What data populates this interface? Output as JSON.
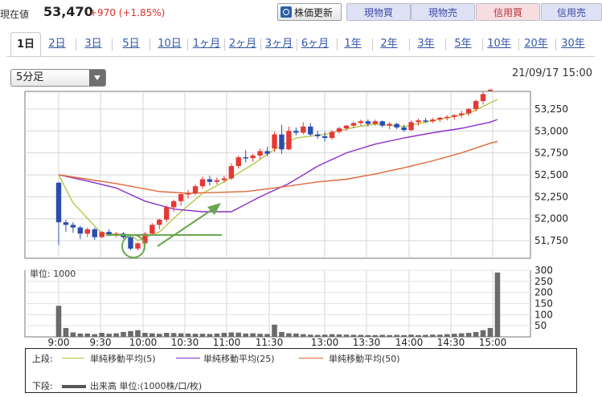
{
  "header": {
    "price_label": "現在値",
    "price_value": "53,470",
    "price_change": "+970 (+1.85%)",
    "buttons": {
      "refresh": "株価更新",
      "spot_buy": "現物買",
      "spot_sell": "現物売",
      "margin_buy": "信用買",
      "margin_sell": "信用売"
    }
  },
  "tabs": [
    {
      "label": "1日",
      "active": true
    },
    {
      "label": "2日"
    },
    {
      "label": "3日"
    },
    {
      "label": "5日"
    },
    {
      "label": "10日"
    },
    {
      "label": "1ヶ月"
    },
    {
      "label": "2ヶ月"
    },
    {
      "label": "3ヶ月"
    },
    {
      "label": "6ヶ月"
    },
    {
      "label": "1年"
    },
    {
      "label": "2年"
    },
    {
      "label": "3年"
    },
    {
      "label": "5年"
    },
    {
      "label": "10年"
    },
    {
      "label": "20年"
    },
    {
      "label": "30年"
    }
  ],
  "period_select": {
    "value": "5分足"
  },
  "datetime": "21/09/17 15:00",
  "colors": {
    "up": "#e53935",
    "down": "#2b4db0",
    "ma5": "#b4c84a",
    "ma25": "#8b2fc9",
    "ma50": "#e0673a",
    "volume": "#6b6b6b",
    "annotation": "#6aa84f"
  },
  "chart_data": [
    {
      "type": "candlestick",
      "name": "price",
      "x_ticks": [
        "9:00",
        "9:30",
        "10:00",
        "10:30",
        "11:00",
        "11:30",
        "13:00",
        "13:30",
        "14:00",
        "14:30",
        "15:00"
      ],
      "y_ticks": [
        51750,
        52000,
        52250,
        52500,
        52750,
        53000,
        53250
      ],
      "ylim": [
        51550,
        53450
      ],
      "candles": [
        {
          "t": "9:00",
          "o": 52410,
          "h": 52420,
          "l": 51700,
          "c": 51960
        },
        {
          "t": "9:05",
          "o": 51960,
          "h": 51990,
          "l": 51850,
          "c": 51930
        },
        {
          "t": "9:10",
          "o": 51930,
          "h": 51960,
          "l": 51840,
          "c": 51900
        },
        {
          "t": "9:15",
          "o": 51900,
          "h": 51920,
          "l": 51770,
          "c": 51830
        },
        {
          "t": "9:20",
          "o": 51830,
          "h": 51900,
          "l": 51790,
          "c": 51880
        },
        {
          "t": "9:25",
          "o": 51880,
          "h": 51900,
          "l": 51760,
          "c": 51790
        },
        {
          "t": "9:30",
          "o": 51790,
          "h": 51860,
          "l": 51780,
          "c": 51850
        },
        {
          "t": "9:35",
          "o": 51850,
          "h": 51880,
          "l": 51800,
          "c": 51820
        },
        {
          "t": "9:40",
          "o": 51820,
          "h": 51850,
          "l": 51790,
          "c": 51830
        },
        {
          "t": "9:45",
          "o": 51830,
          "h": 51850,
          "l": 51770,
          "c": 51790
        },
        {
          "t": "9:50",
          "o": 51790,
          "h": 51800,
          "l": 51640,
          "c": 51660
        },
        {
          "t": "9:55",
          "o": 51660,
          "h": 51730,
          "l": 51640,
          "c": 51720
        },
        {
          "t": "10:00",
          "o": 51720,
          "h": 51850,
          "l": 51700,
          "c": 51830
        },
        {
          "t": "10:05",
          "o": 51830,
          "h": 51950,
          "l": 51820,
          "c": 51930
        },
        {
          "t": "10:10",
          "o": 51930,
          "h": 52000,
          "l": 51880,
          "c": 51990
        },
        {
          "t": "10:15",
          "o": 51990,
          "h": 52150,
          "l": 51960,
          "c": 52130
        },
        {
          "t": "10:20",
          "o": 52130,
          "h": 52220,
          "l": 52080,
          "c": 52200
        },
        {
          "t": "10:25",
          "o": 52200,
          "h": 52300,
          "l": 52150,
          "c": 52280
        },
        {
          "t": "10:30",
          "o": 52280,
          "h": 52330,
          "l": 52230,
          "c": 52290
        },
        {
          "t": "10:35",
          "o": 52290,
          "h": 52390,
          "l": 52270,
          "c": 52370
        },
        {
          "t": "10:40",
          "o": 52370,
          "h": 52480,
          "l": 52340,
          "c": 52450
        },
        {
          "t": "10:45",
          "o": 52450,
          "h": 52490,
          "l": 52380,
          "c": 52420
        },
        {
          "t": "10:50",
          "o": 52420,
          "h": 52470,
          "l": 52390,
          "c": 52440
        },
        {
          "t": "10:55",
          "o": 52440,
          "h": 52490,
          "l": 52410,
          "c": 52460
        },
        {
          "t": "11:00",
          "o": 52460,
          "h": 52630,
          "l": 52440,
          "c": 52600
        },
        {
          "t": "11:05",
          "o": 52600,
          "h": 52720,
          "l": 52570,
          "c": 52700
        },
        {
          "t": "11:10",
          "o": 52700,
          "h": 52780,
          "l": 52640,
          "c": 52690
        },
        {
          "t": "11:15",
          "o": 52690,
          "h": 52740,
          "l": 52650,
          "c": 52720
        },
        {
          "t": "11:20",
          "o": 52720,
          "h": 52800,
          "l": 52680,
          "c": 52770
        },
        {
          "t": "11:25",
          "o": 52770,
          "h": 52820,
          "l": 52710,
          "c": 52740
        },
        {
          "t": "12:30",
          "o": 52800,
          "h": 52990,
          "l": 52760,
          "c": 52960
        },
        {
          "t": "12:35",
          "o": 52960,
          "h": 53070,
          "l": 52740,
          "c": 52790
        },
        {
          "t": "12:40",
          "o": 52790,
          "h": 53050,
          "l": 52780,
          "c": 53000
        },
        {
          "t": "12:45",
          "o": 53000,
          "h": 53040,
          "l": 52950,
          "c": 52980
        },
        {
          "t": "12:50",
          "o": 52980,
          "h": 53100,
          "l": 52960,
          "c": 53050
        },
        {
          "t": "12:55",
          "o": 53050,
          "h": 53090,
          "l": 52940,
          "c": 52960
        },
        {
          "t": "13:00",
          "o": 52960,
          "h": 53000,
          "l": 52910,
          "c": 52940
        },
        {
          "t": "13:05",
          "o": 52940,
          "h": 52990,
          "l": 52880,
          "c": 52920
        },
        {
          "t": "13:10",
          "o": 52920,
          "h": 53010,
          "l": 52900,
          "c": 52990
        },
        {
          "t": "13:15",
          "o": 52990,
          "h": 53050,
          "l": 52970,
          "c": 53030
        },
        {
          "t": "13:20",
          "o": 53030,
          "h": 53070,
          "l": 53000,
          "c": 53060
        },
        {
          "t": "13:25",
          "o": 53060,
          "h": 53110,
          "l": 53030,
          "c": 53090
        },
        {
          "t": "13:30",
          "o": 53090,
          "h": 53130,
          "l": 53060,
          "c": 53110
        },
        {
          "t": "13:35",
          "o": 53110,
          "h": 53130,
          "l": 53050,
          "c": 53080
        },
        {
          "t": "13:40",
          "o": 53080,
          "h": 53130,
          "l": 53060,
          "c": 53110
        },
        {
          "t": "13:45",
          "o": 53110,
          "h": 53120,
          "l": 53040,
          "c": 53060
        },
        {
          "t": "13:50",
          "o": 53060,
          "h": 53100,
          "l": 53020,
          "c": 53080
        },
        {
          "t": "13:55",
          "o": 53080,
          "h": 53090,
          "l": 53020,
          "c": 53040
        },
        {
          "t": "14:00",
          "o": 53040,
          "h": 53070,
          "l": 52990,
          "c": 53010
        },
        {
          "t": "14:05",
          "o": 53010,
          "h": 53120,
          "l": 53000,
          "c": 53100
        },
        {
          "t": "14:10",
          "o": 53100,
          "h": 53140,
          "l": 53060,
          "c": 53120
        },
        {
          "t": "14:15",
          "o": 53120,
          "h": 53150,
          "l": 53090,
          "c": 53110
        },
        {
          "t": "14:20",
          "o": 53110,
          "h": 53150,
          "l": 53090,
          "c": 53130
        },
        {
          "t": "14:25",
          "o": 53130,
          "h": 53160,
          "l": 53100,
          "c": 53150
        },
        {
          "t": "14:30",
          "o": 53150,
          "h": 53180,
          "l": 53120,
          "c": 53160
        },
        {
          "t": "14:35",
          "o": 53160,
          "h": 53190,
          "l": 53130,
          "c": 53180
        },
        {
          "t": "14:40",
          "o": 53180,
          "h": 53230,
          "l": 53150,
          "c": 53200
        },
        {
          "t": "14:45",
          "o": 53200,
          "h": 53260,
          "l": 53170,
          "c": 53250
        },
        {
          "t": "14:50",
          "o": 53250,
          "h": 53360,
          "l": 53220,
          "c": 53340
        },
        {
          "t": "14:55",
          "o": 53340,
          "h": 53450,
          "l": 53300,
          "c": 53420
        },
        {
          "t": "15:00",
          "o": 53470,
          "h": 53480,
          "l": 53470,
          "c": 53470
        }
      ],
      "moving_averages": [
        {
          "name": "単純移動平均(5)",
          "color_key": "ma5",
          "points": [
            [
              0,
              52500
            ],
            [
              2,
              52180
            ],
            [
              6,
              51830
            ],
            [
              10,
              51820
            ],
            [
              11,
              51750
            ],
            [
              14,
              51850
            ],
            [
              17,
              52080
            ],
            [
              20,
              52290
            ],
            [
              23,
              52420
            ],
            [
              27,
              52620
            ],
            [
              30,
              52790
            ],
            [
              33,
              52920
            ],
            [
              37,
              52960
            ],
            [
              41,
              53040
            ],
            [
              44,
              53080
            ],
            [
              48,
              53050
            ],
            [
              51,
              53100
            ],
            [
              54,
              53150
            ],
            [
              57,
              53200
            ],
            [
              60,
              53320
            ],
            [
              61,
              53360
            ]
          ]
        },
        {
          "name": "単純移動平均(25)",
          "color_key": "ma25",
          "points": [
            [
              0,
              52500
            ],
            [
              4,
              52430
            ],
            [
              8,
              52350
            ],
            [
              12,
              52200
            ],
            [
              16,
              52110
            ],
            [
              20,
              52080
            ],
            [
              24,
              52080
            ],
            [
              28,
              52250
            ],
            [
              32,
              52400
            ],
            [
              36,
              52600
            ],
            [
              40,
              52750
            ],
            [
              44,
              52850
            ],
            [
              48,
              52920
            ],
            [
              52,
              52980
            ],
            [
              56,
              53030
            ],
            [
              60,
              53100
            ],
            [
              61,
              53130
            ]
          ]
        },
        {
          "name": "単純移動平均(50)",
          "color_key": "ma50",
          "points": [
            [
              0,
              52500
            ],
            [
              8,
              52400
            ],
            [
              14,
              52310
            ],
            [
              18,
              52290
            ],
            [
              22,
              52300
            ],
            [
              26,
              52310
            ],
            [
              30,
              52350
            ],
            [
              36,
              52420
            ],
            [
              40,
              52450
            ],
            [
              44,
              52510
            ],
            [
              48,
              52580
            ],
            [
              52,
              52660
            ],
            [
              56,
              52750
            ],
            [
              60,
              52860
            ],
            [
              61,
              52880
            ]
          ]
        }
      ]
    },
    {
      "type": "bar",
      "name": "volume",
      "label": "単位: 1000",
      "y_ticks": [
        50,
        100,
        150,
        200,
        250,
        300
      ],
      "ylim": [
        0,
        300
      ],
      "values": [
        140,
        40,
        20,
        15,
        15,
        12,
        18,
        14,
        16,
        22,
        26,
        30,
        18,
        16,
        14,
        18,
        17,
        16,
        15,
        14,
        14,
        13,
        15,
        18,
        20,
        19,
        15,
        16,
        14,
        13,
        55,
        22,
        16,
        15,
        12,
        10,
        9,
        10,
        12,
        11,
        10,
        9,
        9,
        8,
        8,
        9,
        8,
        9,
        8,
        10,
        8,
        9,
        10,
        10,
        12,
        14,
        16,
        18,
        22,
        30,
        40,
        290
      ]
    }
  ],
  "legend": {
    "upper_label": "上段:",
    "lower_label": "下段:",
    "ma5": "単純移動平均(5)",
    "ma25": "単純移動平均(25)",
    "ma50": "単純移動平均(50)",
    "volume": "出来高 単位:(1000株/口/枚)"
  }
}
